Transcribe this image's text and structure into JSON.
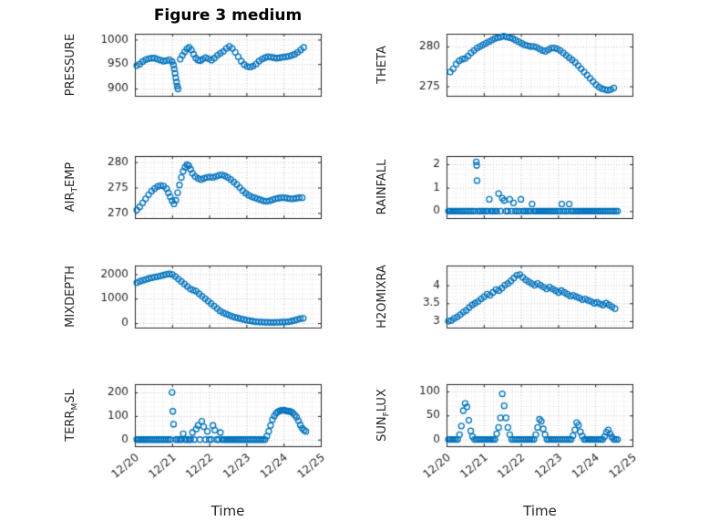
{
  "figure": {
    "title": "Figure 3 medium",
    "xlabel": "Time",
    "marker_color": "#0072BD",
    "axis_color": "#262626",
    "grid_color": "#c2c2c2",
    "minor_grid_color": "#e2e2e2",
    "xlim": [
      0,
      5
    ],
    "x_tick_positions": [
      0,
      1,
      2,
      3,
      4,
      5
    ],
    "x_ticks": [
      "12/20",
      "12/21",
      "12/22",
      "12/23",
      "12/24",
      "12/25"
    ]
  },
  "chart_data": [
    {
      "type": "scatter",
      "name": "pressure",
      "ylabel": "PRESSURE",
      "ylim": [
        885,
        1012
      ],
      "yticks": [
        900,
        950,
        1000
      ],
      "x": [
        0.05,
        0.13,
        0.21,
        0.29,
        0.37,
        0.45,
        0.53,
        0.61,
        0.69,
        0.77,
        0.85,
        0.93,
        1.0,
        1.04,
        1.06,
        1.08,
        1.1,
        1.12,
        1.14,
        1.16,
        1.22,
        1.28,
        1.34,
        1.4,
        1.46,
        1.52,
        1.58,
        1.64,
        1.7,
        1.76,
        1.82,
        1.9,
        1.98,
        2.06,
        2.14,
        2.22,
        2.3,
        2.38,
        2.46,
        2.54,
        2.62,
        2.7,
        2.78,
        2.86,
        2.94,
        3.02,
        3.1,
        3.18,
        3.26,
        3.34,
        3.42,
        3.5,
        3.58,
        3.66,
        3.74,
        3.82,
        3.9,
        3.98,
        4.06,
        4.14,
        4.22,
        4.3,
        4.38,
        4.46,
        4.54
      ],
      "y": [
        947,
        950,
        955,
        959,
        961,
        962,
        962,
        960,
        958,
        956,
        957,
        959,
        955,
        948,
        940,
        931,
        922,
        913,
        905,
        899,
        960,
        968,
        975,
        981,
        984,
        979,
        970,
        962,
        958,
        957,
        960,
        963,
        961,
        958,
        962,
        968,
        972,
        976,
        982,
        986,
        982,
        974,
        965,
        956,
        949,
        945,
        944,
        946,
        950,
        956,
        960,
        963,
        965,
        964,
        963,
        962,
        963,
        964,
        965,
        966,
        968,
        970,
        974,
        979,
        984
      ]
    },
    {
      "type": "scatter",
      "name": "theta",
      "ylabel": "THETA",
      "ylim": [
        273.8,
        281.6
      ],
      "yticks": [
        275,
        280
      ],
      "x": [
        0.1,
        0.18,
        0.26,
        0.34,
        0.42,
        0.5,
        0.58,
        0.66,
        0.74,
        0.82,
        0.9,
        0.98,
        1.06,
        1.14,
        1.22,
        1.3,
        1.38,
        1.46,
        1.54,
        1.62,
        1.7,
        1.78,
        1.86,
        1.94,
        2.02,
        2.1,
        2.18,
        2.26,
        2.34,
        2.42,
        2.5,
        2.58,
        2.66,
        2.74,
        2.82,
        2.9,
        2.98,
        3.06,
        3.14,
        3.22,
        3.3,
        3.38,
        3.46,
        3.54,
        3.62,
        3.7,
        3.78,
        3.86,
        3.94,
        4.02,
        4.1,
        4.18,
        4.26,
        4.34,
        4.42,
        4.5
      ],
      "y": [
        276.8,
        277.2,
        277.8,
        278.2,
        278.4,
        278.5,
        278.8,
        279.2,
        279.5,
        279.8,
        280,
        280.2,
        280.4,
        280.6,
        280.8,
        281,
        281.1,
        281.2,
        281.3,
        281.2,
        281.1,
        281,
        280.8,
        280.6,
        280.4,
        280.2,
        280.1,
        280,
        280,
        279.9,
        279.7,
        279.5,
        279.4,
        279.6,
        279.8,
        279.8,
        279.7,
        279.5,
        279.2,
        278.9,
        278.6,
        278.3,
        278,
        277.6,
        277.2,
        276.8,
        276.4,
        276,
        275.6,
        275.2,
        274.9,
        274.7,
        274.6,
        274.5,
        274.6,
        274.8
      ]
    },
    {
      "type": "scatter",
      "name": "air_temp",
      "ylabel": "AIR_TEMP",
      "ylim": [
        269,
        281.2
      ],
      "yticks": [
        270,
        275,
        280
      ],
      "x": [
        0.05,
        0.13,
        0.21,
        0.29,
        0.37,
        0.45,
        0.53,
        0.61,
        0.69,
        0.77,
        0.85,
        0.9,
        0.95,
        1.0,
        1.05,
        1.1,
        1.15,
        1.2,
        1.25,
        1.3,
        1.35,
        1.4,
        1.45,
        1.5,
        1.55,
        1.62,
        1.7,
        1.78,
        1.86,
        1.94,
        2.02,
        2.1,
        2.18,
        2.26,
        2.34,
        2.42,
        2.5,
        2.58,
        2.66,
        2.74,
        2.82,
        2.9,
        2.98,
        3.06,
        3.14,
        3.22,
        3.3,
        3.38,
        3.46,
        3.54,
        3.62,
        3.7,
        3.78,
        3.86,
        3.94,
        4.02,
        4.1,
        4.18,
        4.26,
        4.34,
        4.42,
        4.5
      ],
      "y": [
        270.6,
        271.2,
        272,
        272.8,
        273.6,
        274.3,
        274.8,
        275.2,
        275.4,
        275.3,
        274.8,
        274,
        273.2,
        272.4,
        271.8,
        272.5,
        274,
        275.5,
        277,
        278.2,
        279,
        279.5,
        279.3,
        278.6,
        277.8,
        277.2,
        276.8,
        276.6,
        276.8,
        277,
        277.1,
        277,
        277.2,
        277.4,
        277.5,
        277.3,
        277,
        276.6,
        276.1,
        275.6,
        275,
        274.4,
        273.9,
        273.5,
        273.2,
        273,
        272.8,
        272.6,
        272.4,
        272.3,
        272.4,
        272.6,
        272.8,
        272.9,
        273,
        273,
        272.9,
        272.8,
        272.8,
        272.9,
        273,
        273
      ]
    },
    {
      "type": "scatter",
      "name": "rainfall",
      "ylabel": "RAINFALL",
      "ylim": [
        -0.3,
        2.35
      ],
      "yticks": [
        0,
        1,
        2
      ],
      "zero_baseline": {
        "start": 0.05,
        "end": 4.6,
        "step": 0.05
      },
      "events": [
        [
          0.8,
          2.1
        ],
        [
          0.81,
          1.95
        ],
        [
          0.82,
          1.3
        ],
        [
          1.15,
          0.5
        ],
        [
          1.4,
          0.75
        ],
        [
          1.5,
          0.55
        ],
        [
          1.55,
          0.45
        ],
        [
          1.7,
          0.5
        ],
        [
          1.8,
          0.35
        ],
        [
          2.0,
          0.5
        ],
        [
          2.3,
          0.3
        ],
        [
          3.1,
          0.3
        ],
        [
          3.3,
          0.3
        ]
      ]
    },
    {
      "type": "scatter",
      "name": "mixdepth",
      "ylabel": "MIXDEPTH",
      "ylim": [
        -180,
        2350
      ],
      "yticks": [
        0,
        1000,
        2000
      ],
      "x": [
        0.05,
        0.13,
        0.21,
        0.29,
        0.37,
        0.45,
        0.53,
        0.61,
        0.69,
        0.77,
        0.85,
        0.93,
        1.01,
        1.09,
        1.17,
        1.25,
        1.33,
        1.41,
        1.49,
        1.57,
        1.65,
        1.73,
        1.81,
        1.89,
        1.97,
        2.05,
        2.13,
        2.21,
        2.29,
        2.37,
        2.45,
        2.53,
        2.61,
        2.69,
        2.77,
        2.85,
        2.93,
        3.01,
        3.09,
        3.17,
        3.25,
        3.33,
        3.41,
        3.49,
        3.57,
        3.65,
        3.73,
        3.81,
        3.89,
        3.97,
        4.05,
        4.13,
        4.21,
        4.29,
        4.37,
        4.45,
        4.53
      ],
      "y": [
        1650,
        1700,
        1750,
        1780,
        1820,
        1850,
        1880,
        1900,
        1930,
        1960,
        1990,
        2010,
        1980,
        1900,
        1800,
        1700,
        1600,
        1500,
        1400,
        1350,
        1300,
        1200,
        1100,
        1000,
        900,
        800,
        700,
        600,
        500,
        430,
        380,
        330,
        280,
        240,
        210,
        180,
        150,
        120,
        100,
        80,
        60,
        50,
        45,
        40,
        35,
        30,
        30,
        35,
        40,
        45,
        50,
        60,
        80,
        110,
        150,
        185,
        200
      ]
    },
    {
      "type": "scatter",
      "name": "h2omixra",
      "ylabel": "H2OMIXRA",
      "ylim": [
        2.82,
        4.55
      ],
      "yticks": [
        3,
        3.5,
        4
      ],
      "x": [
        0.05,
        0.13,
        0.21,
        0.29,
        0.37,
        0.45,
        0.53,
        0.61,
        0.69,
        0.77,
        0.85,
        0.93,
        1.01,
        1.09,
        1.17,
        1.25,
        1.33,
        1.41,
        1.49,
        1.57,
        1.65,
        1.73,
        1.81,
        1.89,
        1.97,
        2.05,
        2.13,
        2.21,
        2.29,
        2.37,
        2.45,
        2.53,
        2.61,
        2.69,
        2.77,
        2.85,
        2.93,
        3.01,
        3.09,
        3.17,
        3.25,
        3.33,
        3.41,
        3.49,
        3.57,
        3.65,
        3.73,
        3.81,
        3.89,
        3.97,
        4.05,
        4.13,
        4.21,
        4.29,
        4.37,
        4.45,
        4.53
      ],
      "y": [
        3.0,
        3.02,
        3.08,
        3.12,
        3.18,
        3.25,
        3.3,
        3.38,
        3.45,
        3.5,
        3.55,
        3.62,
        3.68,
        3.75,
        3.72,
        3.8,
        3.88,
        3.85,
        3.92,
        4.0,
        4.05,
        4.12,
        4.2,
        4.28,
        4.3,
        4.22,
        4.15,
        4.1,
        4.05,
        4.0,
        4.05,
        4.0,
        3.95,
        3.9,
        3.95,
        3.9,
        3.85,
        3.8,
        3.85,
        3.8,
        3.75,
        3.7,
        3.72,
        3.68,
        3.65,
        3.6,
        3.62,
        3.58,
        3.55,
        3.5,
        3.52,
        3.48,
        3.45,
        3.5,
        3.45,
        3.4,
        3.35
      ]
    },
    {
      "type": "scatter",
      "name": "terr_msl",
      "ylabel": "TERR_MSL",
      "ylim": [
        -28,
        235
      ],
      "yticks": [
        0,
        100,
        200
      ],
      "zero_baseline": {
        "start": 0.05,
        "end": 4.6,
        "step": 0.05
      },
      "events": [
        [
          1.0,
          200
        ],
        [
          1.02,
          120
        ],
        [
          1.04,
          65
        ],
        [
          1.3,
          25
        ],
        [
          1.55,
          30
        ],
        [
          1.65,
          45
        ],
        [
          1.7,
          60
        ],
        [
          1.8,
          78
        ],
        [
          1.85,
          55
        ],
        [
          1.95,
          35
        ],
        [
          2.1,
          60
        ],
        [
          2.15,
          40
        ],
        [
          2.3,
          30
        ],
        [
          3.55,
          15
        ],
        [
          3.6,
          35
        ],
        [
          3.65,
          60
        ],
        [
          3.7,
          85
        ],
        [
          3.75,
          100
        ],
        [
          3.8,
          112
        ],
        [
          3.85,
          118
        ],
        [
          3.9,
          122
        ],
        [
          3.95,
          124
        ],
        [
          4.0,
          125
        ],
        [
          4.05,
          123
        ],
        [
          4.1,
          121
        ],
        [
          4.15,
          120
        ],
        [
          4.2,
          118
        ],
        [
          4.25,
          113
        ],
        [
          4.3,
          104
        ],
        [
          4.35,
          95
        ],
        [
          4.4,
          80
        ],
        [
          4.45,
          62
        ],
        [
          4.5,
          48
        ],
        [
          4.55,
          40
        ],
        [
          4.6,
          35
        ]
      ]
    },
    {
      "type": "scatter",
      "name": "sun_flux",
      "ylabel": "SUN_FLUX",
      "ylim": [
        -14,
        115
      ],
      "yticks": [
        0,
        50,
        100
      ],
      "zero_baseline": {
        "start": 0.05,
        "end": 4.6,
        "step": 0.05
      },
      "events": [
        [
          0.35,
          10
        ],
        [
          0.4,
          28
        ],
        [
          0.45,
          60
        ],
        [
          0.5,
          75
        ],
        [
          0.55,
          68
        ],
        [
          0.6,
          40
        ],
        [
          0.65,
          18
        ],
        [
          0.7,
          6
        ],
        [
          1.35,
          12
        ],
        [
          1.4,
          25
        ],
        [
          1.45,
          45
        ],
        [
          1.5,
          95
        ],
        [
          1.55,
          70
        ],
        [
          1.6,
          45
        ],
        [
          1.65,
          25
        ],
        [
          1.7,
          10
        ],
        [
          2.4,
          10
        ],
        [
          2.45,
          25
        ],
        [
          2.5,
          42
        ],
        [
          2.55,
          38
        ],
        [
          2.6,
          22
        ],
        [
          2.65,
          10
        ],
        [
          3.4,
          8
        ],
        [
          3.45,
          20
        ],
        [
          3.5,
          35
        ],
        [
          3.55,
          30
        ],
        [
          3.6,
          16
        ],
        [
          3.65,
          7
        ],
        [
          4.25,
          6
        ],
        [
          4.3,
          15
        ],
        [
          4.35,
          20
        ],
        [
          4.4,
          12
        ],
        [
          4.45,
          5
        ]
      ]
    }
  ]
}
